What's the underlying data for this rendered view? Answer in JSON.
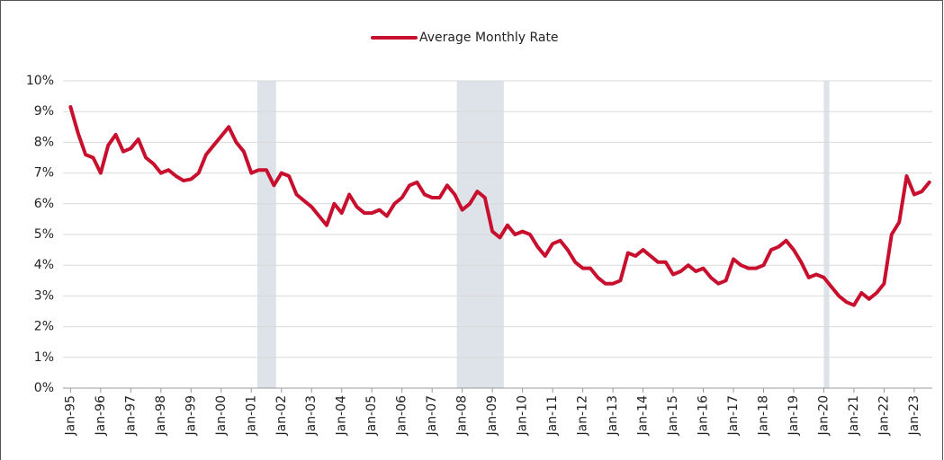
{
  "chart_data": {
    "type": "line",
    "x": [
      1995,
      1995.25,
      1995.5,
      1995.75,
      1996,
      1996.25,
      1996.5,
      1996.75,
      1997,
      1997.25,
      1997.5,
      1997.75,
      1998,
      1998.25,
      1998.5,
      1998.75,
      1999,
      1999.25,
      1999.5,
      1999.75,
      2000,
      2000.25,
      2000.5,
      2000.75,
      2001,
      2001.25,
      2001.5,
      2001.75,
      2002,
      2002.25,
      2002.5,
      2002.75,
      2003,
      2003.25,
      2003.5,
      2003.75,
      2004,
      2004.25,
      2004.5,
      2004.75,
      2005,
      2005.25,
      2005.5,
      2005.75,
      2006,
      2006.25,
      2006.5,
      2006.75,
      2007,
      2007.25,
      2007.5,
      2007.75,
      2008,
      2008.25,
      2008.5,
      2008.75,
      2009,
      2009.25,
      2009.5,
      2009.75,
      2010,
      2010.25,
      2010.5,
      2010.75,
      2011,
      2011.25,
      2011.5,
      2011.75,
      2012,
      2012.25,
      2012.5,
      2012.75,
      2013,
      2013.25,
      2013.5,
      2013.75,
      2014,
      2014.25,
      2014.5,
      2014.75,
      2015,
      2015.25,
      2015.5,
      2015.75,
      2016,
      2016.25,
      2016.5,
      2016.75,
      2017,
      2017.25,
      2017.5,
      2017.75,
      2018,
      2018.25,
      2018.5,
      2018.75,
      2019,
      2019.25,
      2019.5,
      2019.75,
      2020,
      2020.25,
      2020.5,
      2020.75,
      2021,
      2021.25,
      2021.5,
      2021.75,
      2022,
      2022.25,
      2022.5,
      2022.75,
      2023,
      2023.25,
      2023.5
    ],
    "series": [
      {
        "name": "Average Monthly Rate",
        "color": "#c8102e",
        "values": [
          9.15,
          8.3,
          7.6,
          7.5,
          7.0,
          7.9,
          8.25,
          7.7,
          7.8,
          8.1,
          7.5,
          7.3,
          7.0,
          7.1,
          6.9,
          6.75,
          6.8,
          7.0,
          7.6,
          7.9,
          8.2,
          8.5,
          8.0,
          7.7,
          7.0,
          7.1,
          7.1,
          6.6,
          7.0,
          6.9,
          6.3,
          6.1,
          5.9,
          5.6,
          5.3,
          6.0,
          5.7,
          6.3,
          5.9,
          5.7,
          5.7,
          5.8,
          5.6,
          6.0,
          6.2,
          6.6,
          6.7,
          6.3,
          6.2,
          6.2,
          6.6,
          6.3,
          5.8,
          6.0,
          6.4,
          6.2,
          5.1,
          4.9,
          5.3,
          5.0,
          5.1,
          5.0,
          4.6,
          4.3,
          4.7,
          4.8,
          4.5,
          4.1,
          3.9,
          3.9,
          3.6,
          3.4,
          3.4,
          3.5,
          4.4,
          4.3,
          4.5,
          4.3,
          4.1,
          4.1,
          3.7,
          3.8,
          4.0,
          3.8,
          3.9,
          3.6,
          3.4,
          3.5,
          4.2,
          4.0,
          3.9,
          3.9,
          4.0,
          4.5,
          4.6,
          4.8,
          4.5,
          4.1,
          3.6,
          3.7,
          3.6,
          3.3,
          3.0,
          2.8,
          2.7,
          3.1,
          2.9,
          3.1,
          3.4,
          5.0,
          5.4,
          6.9,
          6.3,
          6.4,
          6.7
        ]
      }
    ],
    "shaded_periods": [
      {
        "start": 2001.2,
        "end": 2001.82
      },
      {
        "start": 2007.82,
        "end": 2009.38
      },
      {
        "start": 2020.0,
        "end": 2020.18
      }
    ],
    "xlim": [
      1994.75,
      2023.6
    ],
    "xticks": [
      {
        "value": 1995,
        "label": "Jan-95"
      },
      {
        "value": 1996,
        "label": "Jan-96"
      },
      {
        "value": 1997,
        "label": "Jan-97"
      },
      {
        "value": 1998,
        "label": "Jan-98"
      },
      {
        "value": 1999,
        "label": "Jan-99"
      },
      {
        "value": 2000,
        "label": "Jan-00"
      },
      {
        "value": 2001,
        "label": "Jan-01"
      },
      {
        "value": 2002,
        "label": "Jan-02"
      },
      {
        "value": 2003,
        "label": "Jan-03"
      },
      {
        "value": 2004,
        "label": "Jan-04"
      },
      {
        "value": 2005,
        "label": "Jan-05"
      },
      {
        "value": 2006,
        "label": "Jan-06"
      },
      {
        "value": 2007,
        "label": "Jan-07"
      },
      {
        "value": 2008,
        "label": "Jan-08"
      },
      {
        "value": 2009,
        "label": "Jan-09"
      },
      {
        "value": 2010,
        "label": "Jan-10"
      },
      {
        "value": 2011,
        "label": "Jan-11"
      },
      {
        "value": 2012,
        "label": "Jan-12"
      },
      {
        "value": 2013,
        "label": "Jan-13"
      },
      {
        "value": 2014,
        "label": "Jan-14"
      },
      {
        "value": 2015,
        "label": "Jan-15"
      },
      {
        "value": 2016,
        "label": "Jan-16"
      },
      {
        "value": 2017,
        "label": "Jan-17"
      },
      {
        "value": 2018,
        "label": "Jan-18"
      },
      {
        "value": 2019,
        "label": "Jan-19"
      },
      {
        "value": 2020,
        "label": "Jan-20"
      },
      {
        "value": 2021,
        "label": "Jan-21"
      },
      {
        "value": 2022,
        "label": "Jan-22"
      },
      {
        "value": 2023,
        "label": "Jan-23"
      }
    ],
    "ylim": [
      0,
      10
    ],
    "yticks": [
      {
        "value": 0,
        "label": "0%"
      },
      {
        "value": 1,
        "label": "1%"
      },
      {
        "value": 2,
        "label": "2%"
      },
      {
        "value": 3,
        "label": "3%"
      },
      {
        "value": 4,
        "label": "4%"
      },
      {
        "value": 5,
        "label": "5%"
      },
      {
        "value": 6,
        "label": "6%"
      },
      {
        "value": 7,
        "label": "7%"
      },
      {
        "value": 8,
        "label": "8%"
      },
      {
        "value": 9,
        "label": "9%"
      },
      {
        "value": 10,
        "label": "10%"
      }
    ],
    "grid": true,
    "legend": "top"
  }
}
